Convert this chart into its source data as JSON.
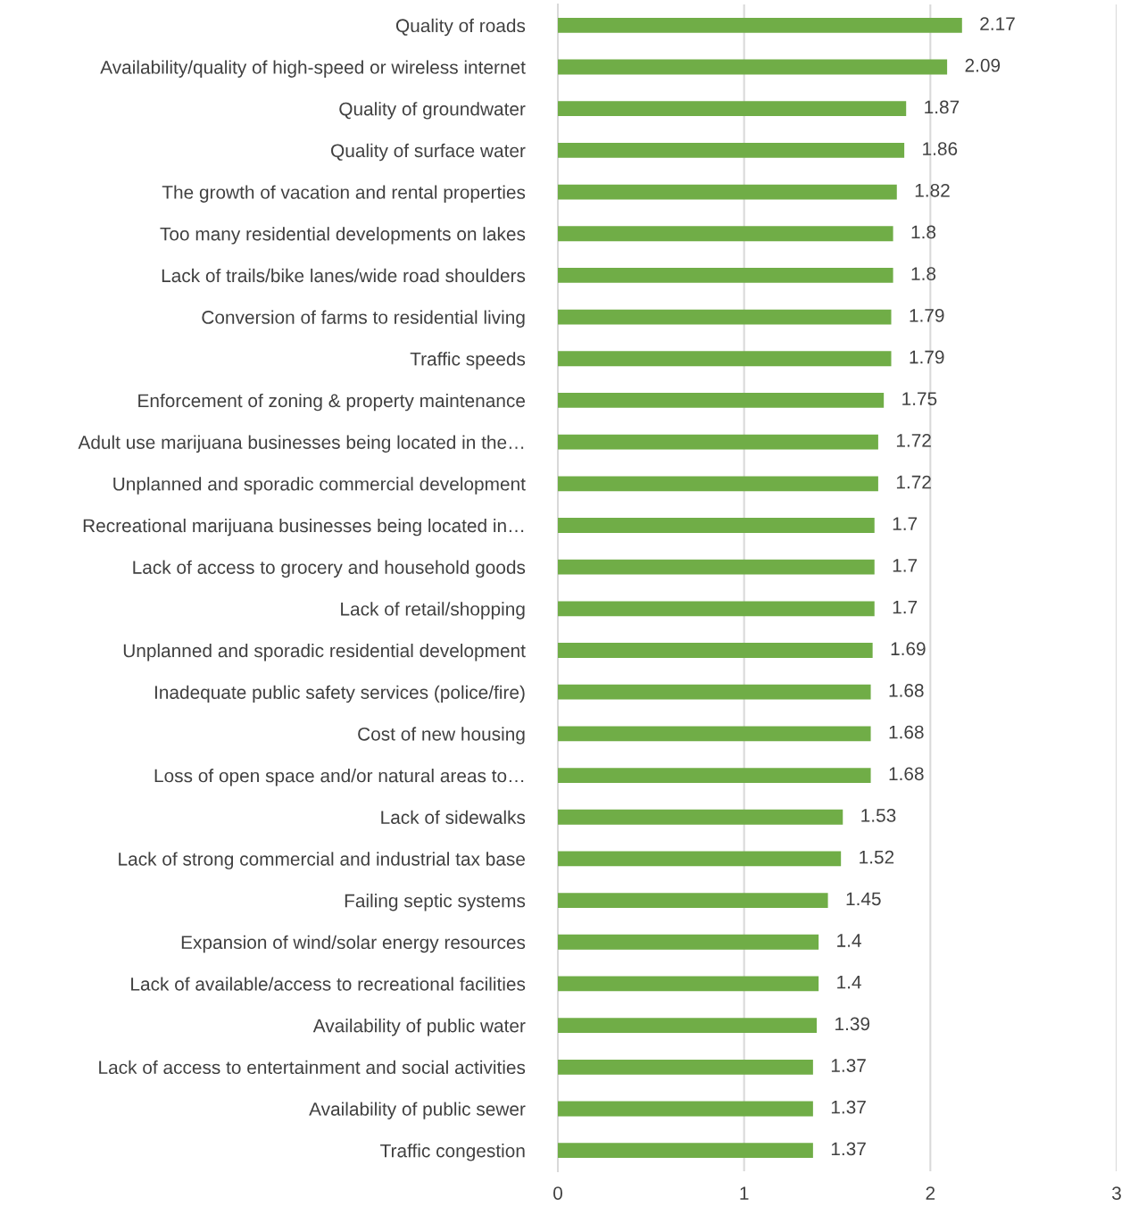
{
  "chart_data": {
    "type": "bar",
    "orientation": "horizontal",
    "categories": [
      "Quality of roads",
      "Availability/quality of high-speed or wireless internet",
      "Quality of groundwater",
      "Quality of surface water",
      "The growth of vacation and rental properties",
      "Too many residential developments on lakes",
      "Lack of trails/bike lanes/wide road shoulders",
      "Conversion of farms to residential living",
      "Traffic speeds",
      "Enforcement of zoning & property maintenance",
      "Adult use marijuana businesses being located in the…",
      "Unplanned and sporadic commercial development",
      "Recreational marijuana businesses being located in…",
      "Lack of access to grocery and household goods",
      "Lack of retail/shopping",
      "Unplanned and sporadic residential development",
      "Inadequate public safety services (police/fire)",
      "Cost of new housing",
      "Loss of open space and/or natural areas to…",
      "Lack of sidewalks",
      "Lack of strong commercial and industrial tax base",
      "Failing septic systems",
      "Expansion of wind/solar energy resources",
      "Lack of available/access to recreational facilities",
      "Availability of public water",
      "Lack of access to entertainment and social activities",
      "Availability of public sewer",
      "Traffic congestion"
    ],
    "values": [
      2.17,
      2.09,
      1.87,
      1.86,
      1.82,
      1.8,
      1.8,
      1.79,
      1.79,
      1.75,
      1.72,
      1.72,
      1.7,
      1.7,
      1.7,
      1.69,
      1.68,
      1.68,
      1.68,
      1.53,
      1.52,
      1.45,
      1.4,
      1.4,
      1.39,
      1.37,
      1.37,
      1.37
    ],
    "color": "#70ad47",
    "xlim": [
      0,
      3
    ],
    "xticks": [
      0,
      1,
      2,
      3
    ],
    "grid": "x",
    "data_labels": true
  }
}
